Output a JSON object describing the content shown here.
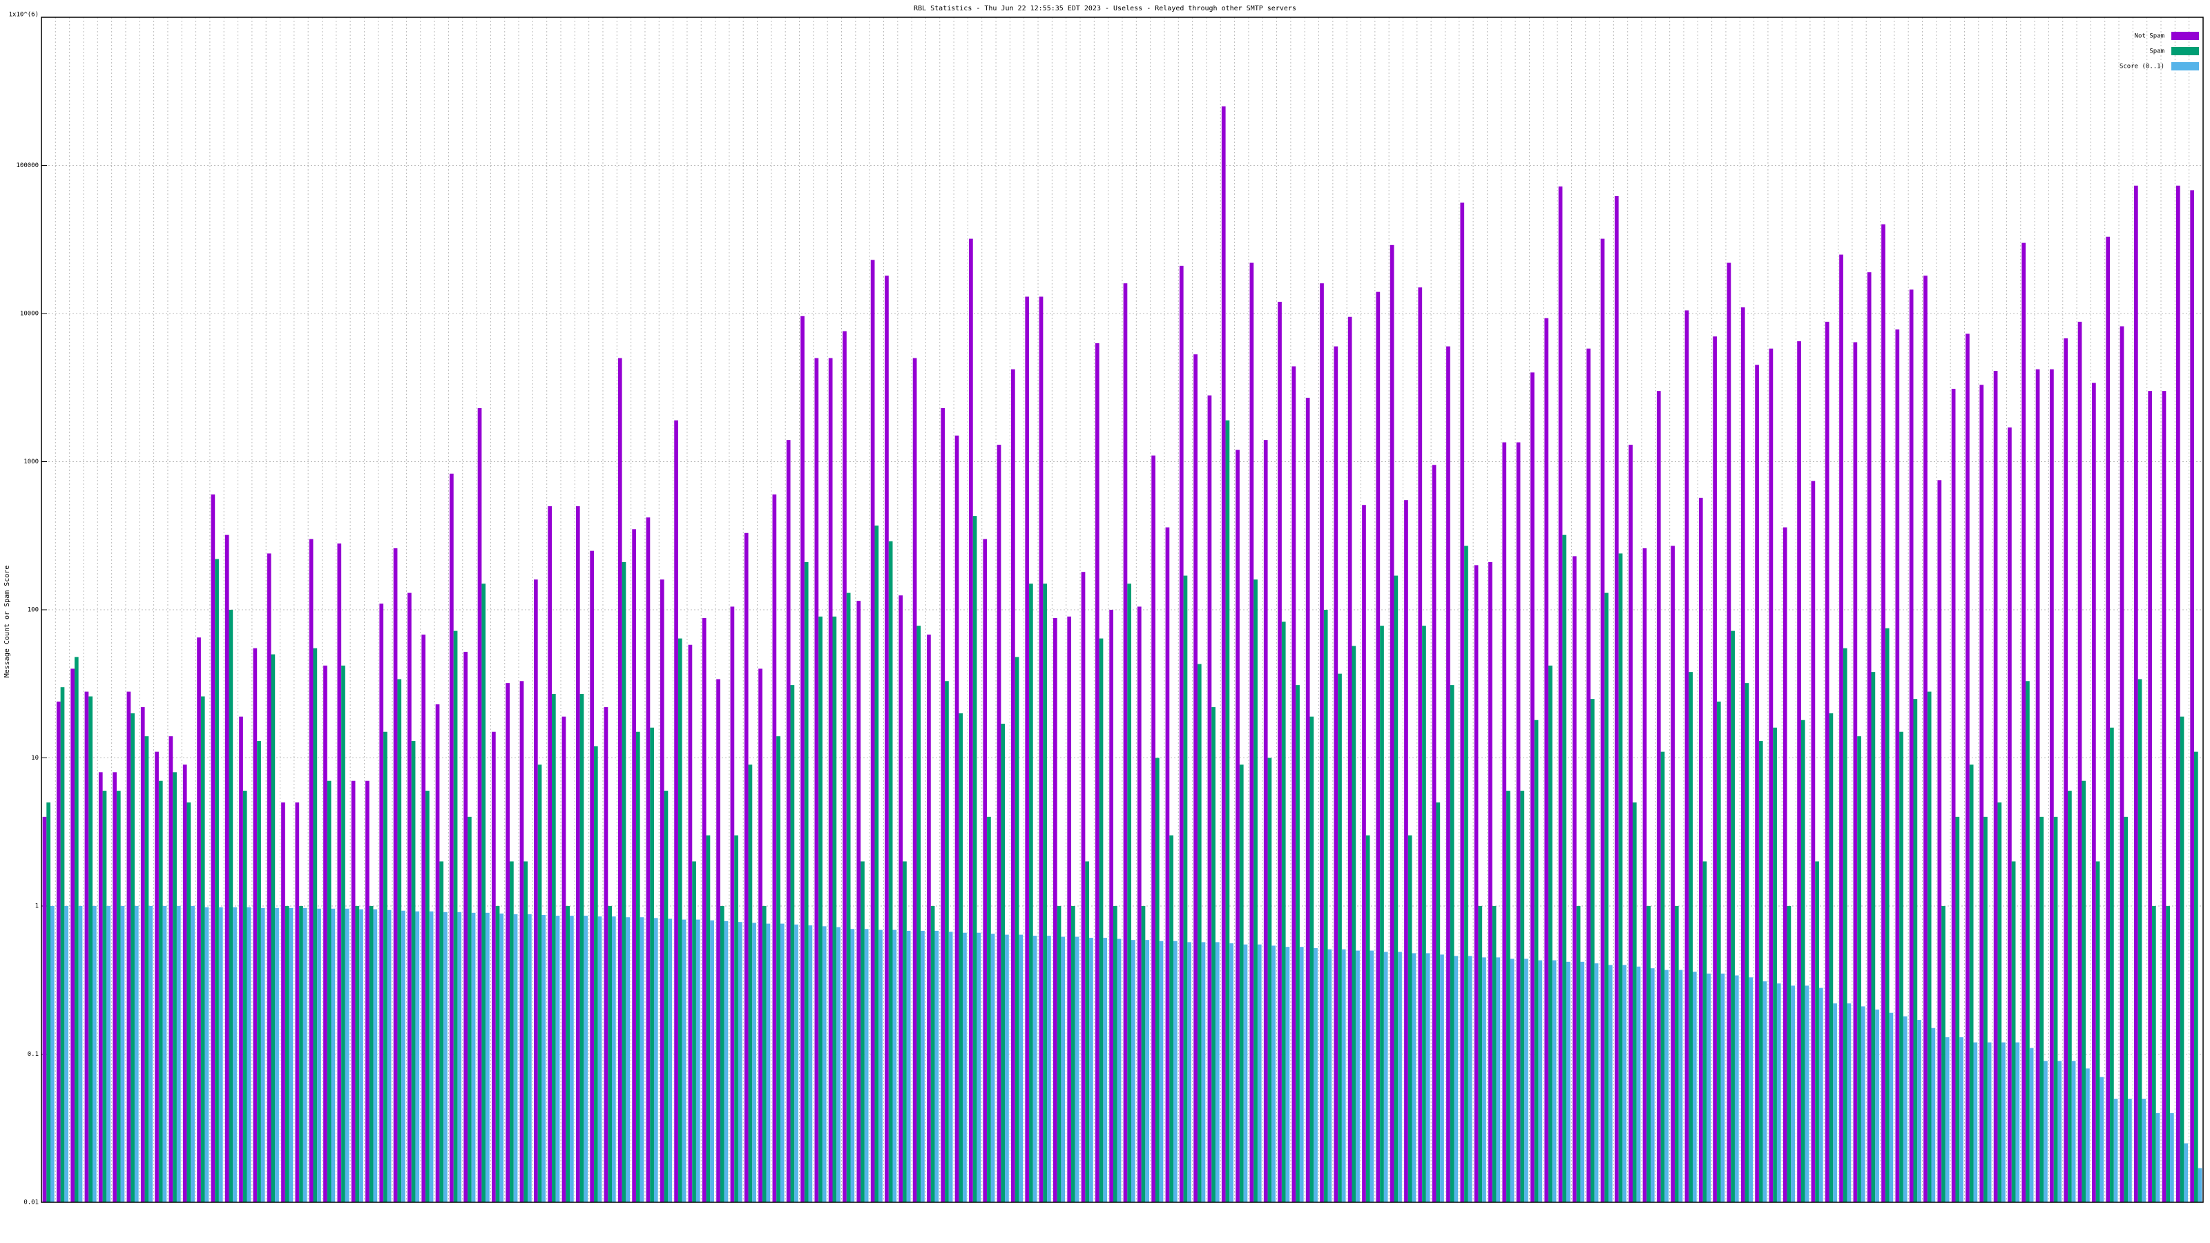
{
  "chart_data": {
    "type": "bar",
    "title": "RBL Statistics - Thu Jun 22 12:55:35 EDT 2023 - Useless - Relayed through other SMTP servers",
    "y_label": "Message Count or Spam Score",
    "log_y": true,
    "grid": true,
    "legend_position": "top-right",
    "ylim": [
      0.01,
      1000000
    ],
    "yticks": [
      0.01,
      0.1,
      1,
      10,
      100,
      1000,
      10000,
      100000,
      {
        "value": 1000000,
        "label": "1x10^(6)"
      }
    ],
    "categories": [
      null,
      null,
      null,
      null,
      null,
      null,
      null,
      null,
      null,
      null,
      null,
      null,
      null,
      null,
      null,
      null,
      null,
      null,
      null,
      null,
      null,
      null,
      null,
      null,
      null,
      null,
      null,
      null,
      null,
      null,
      null,
      null,
      null,
      null,
      null,
      null,
      null,
      null,
      null,
      null,
      null,
      null,
      null,
      null,
      null,
      null,
      null,
      null,
      null,
      null,
      null,
      null,
      null,
      null,
      null,
      null,
      null,
      null,
      null,
      null,
      null,
      null,
      null,
      null,
      null,
      null,
      null,
      null,
      null,
      null,
      null,
      null,
      null,
      null,
      null,
      null,
      null,
      null,
      null,
      null,
      null,
      null,
      null,
      null,
      null,
      null,
      null,
      null,
      null,
      null,
      null,
      null,
      null,
      null,
      null,
      null,
      null,
      null,
      null,
      null,
      null,
      null,
      null,
      null,
      null,
      null,
      null,
      null,
      null,
      null,
      null,
      null,
      null,
      null,
      null,
      null,
      null,
      null,
      null,
      null,
      null,
      null,
      null,
      null,
      null,
      null,
      null,
      null,
      null,
      null,
      null,
      null,
      null,
      null,
      null,
      null,
      null,
      null,
      null,
      null,
      null,
      null,
      null,
      null,
      null,
      null,
      null,
      null,
      null,
      null,
      null,
      null,
      null,
      null
    ],
    "series": [
      {
        "name": "Not Spam",
        "color": "#9400d3",
        "values": [
          4,
          24,
          40,
          28,
          8,
          8,
          28,
          22,
          11,
          14,
          9,
          65,
          600,
          320,
          19,
          55,
          240,
          5,
          5,
          300,
          42,
          280,
          7,
          7,
          110,
          260,
          130,
          68,
          23,
          830,
          52,
          2300,
          15,
          32,
          33,
          160,
          500,
          19,
          500,
          250,
          22,
          5000,
          350,
          420,
          160,
          1900,
          58,
          88,
          34,
          105,
          330,
          40,
          600,
          1400,
          9600,
          5000,
          5000,
          7600,
          115,
          23000,
          18000,
          125,
          5000,
          68,
          2300,
          1500,
          32000,
          300,
          1300,
          4200,
          13000,
          13000,
          88,
          90,
          180,
          6300,
          100,
          16000,
          105,
          1100,
          360,
          21000,
          5300,
          2800,
          250000,
          1200,
          22000,
          1400,
          12000,
          4400,
          2700,
          16000,
          6000,
          9500,
          510,
          14000,
          29000,
          550,
          15000,
          950,
          6000,
          56000,
          200,
          210,
          1350,
          1350,
          4000,
          9300,
          72000,
          230,
          5800,
          32000,
          62000,
          1300,
          260,
          3000,
          270,
          10500,
          570,
          7000,
          22000,
          11000,
          4500,
          5800,
          360,
          6500,
          740,
          8800,
          25000,
          6400,
          19000,
          40000,
          7800,
          14500,
          18000,
          750,
          3100,
          7300,
          3300,
          4100,
          1700,
          30000,
          4200,
          4200,
          6800,
          8800,
          3400,
          33000,
          8200,
          73000,
          3000,
          3000,
          73000,
          68000
        ]
      },
      {
        "name": "Spam",
        "color": "#009e73",
        "values": [
          5,
          30,
          48,
          26,
          6,
          6,
          20,
          14,
          7,
          8,
          5,
          26,
          220,
          100,
          6,
          13,
          50,
          1,
          1,
          55,
          7,
          42,
          1,
          1,
          15,
          34,
          13,
          6,
          2,
          72,
          4,
          150,
          1,
          2,
          2,
          9,
          27,
          1,
          27,
          12,
          1,
          210,
          15,
          16,
          6,
          64,
          2,
          3,
          1,
          3,
          9,
          1,
          14,
          31,
          210,
          90,
          90,
          130,
          2,
          370,
          290,
          2,
          78,
          1,
          33,
          20,
          430,
          4,
          17,
          48,
          150,
          150,
          1,
          1,
          2,
          64,
          1,
          150,
          1,
          10,
          3,
          170,
          43,
          22,
          1900,
          9,
          160,
          10,
          83,
          31,
          19,
          100,
          37,
          57,
          3,
          78,
          170,
          3,
          78,
          5,
          31,
          270,
          1,
          1,
          6,
          6,
          18,
          42,
          320,
          1,
          25,
          130,
          240,
          5,
          1,
          11,
          1,
          38,
          2,
          24,
          72,
          32,
          13,
          16,
          1,
          18,
          2,
          20,
          55,
          14,
          38,
          75,
          15,
          25,
          28,
          1,
          4,
          9,
          4,
          5,
          2,
          33,
          4,
          4,
          6,
          7,
          2,
          16,
          4,
          34,
          1,
          1,
          19,
          11
        ]
      },
      {
        "name": "Score (0..1)",
        "color": "#56b4e9",
        "values": [
          1,
          1,
          1,
          1,
          1,
          1,
          1,
          1,
          1,
          1,
          1,
          0.98,
          0.98,
          0.98,
          0.98,
          0.97,
          0.97,
          0.97,
          0.97,
          0.96,
          0.96,
          0.96,
          0.95,
          0.95,
          0.94,
          0.93,
          0.92,
          0.92,
          0.91,
          0.91,
          0.9,
          0.9,
          0.89,
          0.88,
          0.88,
          0.87,
          0.86,
          0.86,
          0.86,
          0.85,
          0.85,
          0.84,
          0.84,
          0.83,
          0.82,
          0.81,
          0.81,
          0.8,
          0.79,
          0.78,
          0.77,
          0.76,
          0.76,
          0.75,
          0.74,
          0.73,
          0.72,
          0.7,
          0.7,
          0.69,
          0.69,
          0.68,
          0.68,
          0.68,
          0.67,
          0.66,
          0.66,
          0.65,
          0.64,
          0.64,
          0.63,
          0.63,
          0.62,
          0.62,
          0.61,
          0.61,
          0.6,
          0.59,
          0.59,
          0.58,
          0.58,
          0.57,
          0.57,
          0.57,
          0.56,
          0.55,
          0.55,
          0.54,
          0.53,
          0.53,
          0.52,
          0.51,
          0.51,
          0.5,
          0.5,
          0.49,
          0.49,
          0.48,
          0.48,
          0.47,
          0.46,
          0.46,
          0.45,
          0.45,
          0.44,
          0.44,
          0.43,
          0.43,
          0.42,
          0.42,
          0.41,
          0.4,
          0.4,
          0.39,
          0.38,
          0.37,
          0.37,
          0.36,
          0.35,
          0.35,
          0.34,
          0.33,
          0.31,
          0.3,
          0.29,
          0.29,
          0.28,
          0.22,
          0.22,
          0.21,
          0.2,
          0.19,
          0.18,
          0.17,
          0.15,
          0.13,
          0.13,
          0.12,
          0.12,
          0.12,
          0.12,
          0.11,
          0.09,
          0.09,
          0.09,
          0.08,
          0.07,
          0.05,
          0.05,
          0.05,
          0.04,
          0.04,
          0.025,
          0.017
        ]
      }
    ]
  }
}
